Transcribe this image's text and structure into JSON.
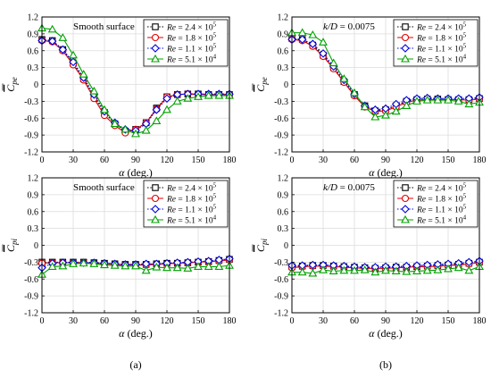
{
  "figure": {
    "caption_left": "(a)",
    "caption_right": "(b)"
  },
  "chart_data": [
    {
      "type": "line",
      "panel": "top-left",
      "annotation": "Smooth surface",
      "ylabel_base": "C",
      "ylabel_sub": "pe",
      "xlabel_sym": "α",
      "xlabel_unit": " (deg.)",
      "xlim": [
        0,
        180
      ],
      "ylim": [
        -1.2,
        1.2
      ],
      "xticks": [
        "0",
        "30",
        "60",
        "90",
        "120",
        "150",
        "180"
      ],
      "yticks": [
        "-1.2",
        "-0.9",
        "-0.6",
        "-0.3",
        "0",
        "0.3",
        "0.6",
        "0.9",
        "1.2"
      ],
      "grid": true,
      "legend_position": "top-right",
      "x": [
        0,
        10,
        20,
        30,
        40,
        50,
        60,
        70,
        80,
        90,
        100,
        110,
        120,
        130,
        140,
        150,
        160,
        170,
        180
      ],
      "series": [
        {
          "name": "Re = 2.4 × 10^5",
          "color": "#000000",
          "style": "dotted",
          "marker": "square",
          "values": [
            0.8,
            0.78,
            0.62,
            0.38,
            0.1,
            -0.22,
            -0.5,
            -0.7,
            -0.83,
            -0.8,
            -0.68,
            -0.42,
            -0.22,
            -0.18,
            -0.17,
            -0.17,
            -0.18,
            -0.18,
            -0.18
          ]
        },
        {
          "name": "Re = 1.8 × 10^5",
          "color": "#e00000",
          "style": "solid",
          "marker": "circle",
          "values": [
            0.78,
            0.76,
            0.6,
            0.35,
            0.08,
            -0.25,
            -0.55,
            -0.73,
            -0.86,
            -0.8,
            -0.68,
            -0.44,
            -0.22,
            -0.18,
            -0.17,
            -0.18,
            -0.18,
            -0.18,
            -0.18
          ]
        },
        {
          "name": "Re = 1.1 × 10^5",
          "color": "#0000e0",
          "style": "dotted",
          "marker": "diamond",
          "values": [
            0.78,
            0.77,
            0.62,
            0.4,
            0.12,
            -0.18,
            -0.48,
            -0.68,
            -0.8,
            -0.82,
            -0.7,
            -0.45,
            -0.25,
            -0.18,
            -0.17,
            -0.17,
            -0.17,
            -0.17,
            -0.17
          ]
        },
        {
          "name": "Re = 5.1 × 10^4",
          "color": "#00a000",
          "style": "solid",
          "marker": "triangle",
          "values": [
            1.0,
            0.98,
            0.83,
            0.52,
            0.18,
            -0.12,
            -0.45,
            -0.7,
            -0.8,
            -0.88,
            -0.82,
            -0.65,
            -0.45,
            -0.3,
            -0.25,
            -0.22,
            -0.2,
            -0.2,
            -0.2
          ]
        }
      ]
    },
    {
      "type": "line",
      "panel": "top-right",
      "annotation_sym": "k/D",
      "annotation_val": " = 0.0075",
      "ylabel_base": "C",
      "ylabel_sub": "pe",
      "xlabel_sym": "α",
      "xlabel_unit": " (deg.)",
      "xlim": [
        0,
        180
      ],
      "ylim": [
        -1.2,
        1.2
      ],
      "xticks": [
        "0",
        "30",
        "60",
        "90",
        "120",
        "150",
        "180"
      ],
      "yticks": [
        "-1.2",
        "-0.9",
        "-0.6",
        "-0.3",
        "0",
        "0.3",
        "0.6",
        "0.9",
        "1.2"
      ],
      "grid": true,
      "legend_position": "top-right",
      "x": [
        0,
        10,
        20,
        30,
        40,
        50,
        60,
        70,
        80,
        90,
        100,
        110,
        120,
        130,
        140,
        150,
        160,
        170,
        180
      ],
      "series": [
        {
          "name": "Re = 2.4 × 10^5",
          "color": "#000000",
          "style": "dotted",
          "marker": "square",
          "values": [
            0.82,
            0.8,
            0.7,
            0.52,
            0.3,
            0.05,
            -0.18,
            -0.38,
            -0.47,
            -0.45,
            -0.38,
            -0.3,
            -0.27,
            -0.26,
            -0.26,
            -0.27,
            -0.27,
            -0.27,
            -0.25
          ]
        },
        {
          "name": "Re = 1.8 × 10^5",
          "color": "#e00000",
          "style": "solid",
          "marker": "circle",
          "values": [
            0.8,
            0.78,
            0.68,
            0.5,
            0.28,
            0.04,
            -0.2,
            -0.4,
            -0.48,
            -0.47,
            -0.4,
            -0.32,
            -0.28,
            -0.27,
            -0.27,
            -0.27,
            -0.27,
            -0.28,
            -0.26
          ]
        },
        {
          "name": "Re = 1.1 × 10^5",
          "color": "#0000e0",
          "style": "dotted",
          "marker": "diamond",
          "values": [
            0.8,
            0.8,
            0.72,
            0.55,
            0.32,
            0.08,
            -0.17,
            -0.38,
            -0.45,
            -0.43,
            -0.35,
            -0.28,
            -0.25,
            -0.24,
            -0.25,
            -0.25,
            -0.25,
            -0.25,
            -0.23
          ]
        },
        {
          "name": "Re = 5.1 × 10^4",
          "color": "#00a000",
          "style": "solid",
          "marker": "triangle",
          "values": [
            0.92,
            0.92,
            0.88,
            0.75,
            0.38,
            0.1,
            -0.15,
            -0.4,
            -0.58,
            -0.55,
            -0.48,
            -0.38,
            -0.3,
            -0.28,
            -0.28,
            -0.28,
            -0.3,
            -0.35,
            -0.32
          ]
        }
      ]
    },
    {
      "type": "line",
      "panel": "bottom-left",
      "annotation": "Smooth surface",
      "ylabel_base": "C",
      "ylabel_sub": "pi",
      "xlabel_sym": "α",
      "xlabel_unit": " (deg.)",
      "xlim": [
        0,
        180
      ],
      "ylim": [
        -1.2,
        1.2
      ],
      "xticks": [
        "0",
        "30",
        "60",
        "90",
        "120",
        "150",
        "180"
      ],
      "yticks": [
        "-1.2",
        "-0.9",
        "-0.6",
        "-0.3",
        "0",
        "0.3",
        "0.6",
        "0.9",
        "1.2"
      ],
      "grid": true,
      "legend_position": "top-right",
      "x": [
        0,
        10,
        20,
        30,
        40,
        50,
        60,
        70,
        80,
        90,
        100,
        110,
        120,
        130,
        140,
        150,
        160,
        170,
        180
      ],
      "series": [
        {
          "name": "Re = 2.4 × 10^5",
          "color": "#000000",
          "style": "dotted",
          "marker": "square",
          "values": [
            -0.3,
            -0.3,
            -0.3,
            -0.3,
            -0.3,
            -0.31,
            -0.32,
            -0.33,
            -0.34,
            -0.34,
            -0.34,
            -0.33,
            -0.32,
            -0.32,
            -0.31,
            -0.3,
            -0.29,
            -0.27,
            -0.25
          ]
        },
        {
          "name": "Re = 1.8 × 10^5",
          "color": "#e00000",
          "style": "solid",
          "marker": "circle",
          "values": [
            -0.32,
            -0.31,
            -0.31,
            -0.31,
            -0.31,
            -0.32,
            -0.33,
            -0.34,
            -0.35,
            -0.35,
            -0.35,
            -0.34,
            -0.33,
            -0.32,
            -0.31,
            -0.3,
            -0.29,
            -0.28,
            -0.26
          ]
        },
        {
          "name": "Re = 1.1 × 10^5",
          "color": "#0000e0",
          "style": "dotted",
          "marker": "diamond",
          "values": [
            -0.4,
            -0.32,
            -0.31,
            -0.31,
            -0.31,
            -0.31,
            -0.32,
            -0.33,
            -0.34,
            -0.34,
            -0.33,
            -0.33,
            -0.32,
            -0.31,
            -0.3,
            -0.29,
            -0.28,
            -0.26,
            -0.24
          ]
        },
        {
          "name": "Re = 5.1 × 10^4",
          "color": "#00a000",
          "style": "solid",
          "marker": "triangle",
          "values": [
            -0.52,
            -0.38,
            -0.37,
            -0.33,
            -0.32,
            -0.33,
            -0.35,
            -0.36,
            -0.37,
            -0.37,
            -0.45,
            -0.39,
            -0.4,
            -0.4,
            -0.41,
            -0.38,
            -0.38,
            -0.38,
            -0.36
          ]
        }
      ]
    },
    {
      "type": "line",
      "panel": "bottom-right",
      "annotation_sym": "k/D",
      "annotation_val": " = 0.0075",
      "ylabel_base": "C",
      "ylabel_sub": "pi",
      "xlabel_sym": "α",
      "xlabel_unit": " (deg.)",
      "xlim": [
        0,
        180
      ],
      "ylim": [
        -1.2,
        1.2
      ],
      "xticks": [
        "0",
        "30",
        "60",
        "90",
        "120",
        "150",
        "180"
      ],
      "yticks": [
        "-1.2",
        "-0.9",
        "-0.6",
        "-0.3",
        "0",
        "0.3",
        "0.6",
        "0.9",
        "1.2"
      ],
      "grid": true,
      "legend_position": "top-right",
      "x": [
        0,
        10,
        20,
        30,
        40,
        50,
        60,
        70,
        80,
        90,
        100,
        110,
        120,
        130,
        140,
        150,
        160,
        170,
        180
      ],
      "series": [
        {
          "name": "Re = 2.4 × 10^5",
          "color": "#000000",
          "style": "dotted",
          "marker": "square",
          "values": [
            -0.38,
            -0.37,
            -0.36,
            -0.36,
            -0.37,
            -0.38,
            -0.39,
            -0.4,
            -0.41,
            -0.4,
            -0.39,
            -0.39,
            -0.38,
            -0.37,
            -0.36,
            -0.35,
            -0.34,
            -0.32,
            -0.3
          ]
        },
        {
          "name": "Re = 1.8 × 10^5",
          "color": "#e00000",
          "style": "solid",
          "marker": "circle",
          "values": [
            -0.4,
            -0.38,
            -0.37,
            -0.37,
            -0.38,
            -0.39,
            -0.4,
            -0.41,
            -0.41,
            -0.41,
            -0.4,
            -0.39,
            -0.38,
            -0.38,
            -0.37,
            -0.36,
            -0.35,
            -0.33,
            -0.31
          ]
        },
        {
          "name": "Re = 1.1 × 10^5",
          "color": "#0000e0",
          "style": "dotted",
          "marker": "diamond",
          "values": [
            -0.36,
            -0.36,
            -0.35,
            -0.35,
            -0.36,
            -0.37,
            -0.38,
            -0.39,
            -0.39,
            -0.38,
            -0.38,
            -0.37,
            -0.36,
            -0.35,
            -0.34,
            -0.33,
            -0.32,
            -0.3,
            -0.28
          ]
        },
        {
          "name": "Re = 5.1 × 10^4",
          "color": "#00a000",
          "style": "solid",
          "marker": "triangle",
          "values": [
            -0.48,
            -0.48,
            -0.5,
            -0.44,
            -0.46,
            -0.45,
            -0.45,
            -0.44,
            -0.48,
            -0.45,
            -0.46,
            -0.47,
            -0.46,
            -0.45,
            -0.44,
            -0.42,
            -0.4,
            -0.45,
            -0.38
          ]
        }
      ]
    }
  ]
}
